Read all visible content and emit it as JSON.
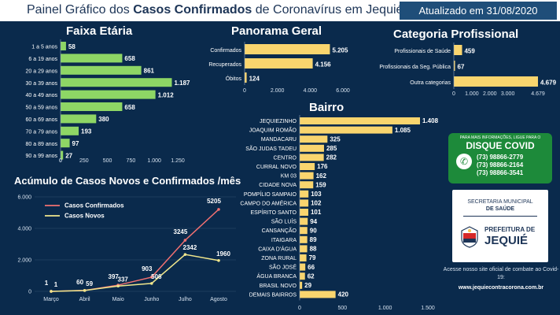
{
  "header": {
    "title_pre": "Painel Gráfico dos ",
    "title_bold": "Casos Confirmados",
    "title_post": " de Coronavírus em Jequié",
    "updated": "Atualizado em 31/08/2020"
  },
  "colors": {
    "background": "#0a2a4c",
    "green_bar": "#8ed665",
    "yellow_bar": "#f9d56e",
    "line_red": "#f07071",
    "line_yellow": "#f0e68c",
    "covid_box": "#1d8a3a"
  },
  "chart_data": [
    {
      "id": "faixa",
      "type": "bar",
      "orientation": "horizontal",
      "title": "Faixa Etária",
      "categories": [
        "1 a 5 anos",
        "6 a 19 anos",
        "20 a 29 anos",
        "30 a 39 anos",
        "40 a 49 anos",
        "50 a 59 anos",
        "60 a 69 anos",
        "70 a 79 anos",
        "80 a 89 anos",
        "90 a 99 anos"
      ],
      "values": [
        58,
        658,
        861,
        1187,
        1012,
        658,
        380,
        193,
        97,
        27
      ],
      "xlim": [
        0,
        1250
      ],
      "xticks": [
        "0",
        "250",
        "500",
        "750",
        "1.000",
        "1.250"
      ]
    },
    {
      "id": "panorama",
      "type": "bar",
      "orientation": "horizontal",
      "title": "Panorama Geral",
      "categories": [
        "Confirmados",
        "Recuperados",
        "Óbitos"
      ],
      "values": [
        5205,
        4156,
        124
      ],
      "xlim": [
        0,
        6000
      ],
      "xticks": [
        "0",
        "2.000",
        "4.000",
        "6.000"
      ]
    },
    {
      "id": "categoria",
      "type": "bar",
      "orientation": "horizontal",
      "title": "Categoria Profissional",
      "categories": [
        "Profissionais de Saúde",
        "Profissionais da Seg. Pública",
        "Outra categorias"
      ],
      "values": [
        459,
        67,
        4679
      ],
      "xlim": [
        0,
        4679
      ],
      "xticks": [
        "0",
        "1.000",
        "2.000",
        "3.000",
        "4.679"
      ]
    },
    {
      "id": "bairro",
      "type": "bar",
      "orientation": "horizontal",
      "title": "Bairro",
      "categories": [
        "JEQUIEZINHO",
        "JOAQUIM ROMÃO",
        "MANDACARU",
        "SÃO JUDAS TADEU",
        "CENTRO",
        "CURRAL NOVO",
        "KM 03",
        "CIDADE NOVA",
        "POMPÍLIO SAMPAIO",
        "CAMPO DO AMÉRICA",
        "ESPÍRITO SANTO",
        "SÃO LUÍS",
        "CANSANÇÃO",
        "ITAIGARA",
        "CAIXA D'ÁGUA",
        "ZONA RURAL",
        "SÃO JOSÉ",
        "ÁGUA BRANCA",
        "BRASIL NOVO",
        "DEMAIS BAIRROS"
      ],
      "values": [
        1408,
        1085,
        325,
        285,
        282,
        176,
        162,
        159,
        103,
        102,
        101,
        94,
        90,
        89,
        88,
        79,
        66,
        62,
        29,
        420
      ],
      "xlim": [
        0,
        1500
      ],
      "xticks": [
        "0",
        "500",
        "1.000",
        "1.500"
      ]
    },
    {
      "id": "acumulo",
      "type": "line",
      "title": "Acúmulo de Casos Novos e Confirmados /mês",
      "categories": [
        "Março",
        "Abril",
        "Maio",
        "Junho",
        "Julho",
        "Agosto"
      ],
      "series": [
        {
          "name": "Casos Confirmados",
          "values": [
            1,
            60,
            397,
            903,
            3245,
            5205
          ],
          "labels": [
            "1",
            "60",
            "397",
            "903",
            "3245",
            "5205"
          ]
        },
        {
          "name": "Casos Novos",
          "values": [
            1,
            59,
            337,
            506,
            2342,
            1960
          ],
          "labels": [
            "1",
            "59",
            "337",
            "506",
            "2342",
            "1960"
          ]
        }
      ],
      "ylim": [
        0,
        6000
      ],
      "yticks": [
        "0",
        "2.000",
        "4.000",
        "6.000"
      ],
      "legend_position": "top-left"
    }
  ],
  "disque": {
    "small": "PARA MAIS INFORMAÇÕES, LIGUE PARA O",
    "big": "DISQUE COVID",
    "phones": [
      "(73) 98866-2779",
      "(73) 98866-2164",
      "(73) 98866-3541"
    ],
    "icon": "whatsapp-icon"
  },
  "secretaria": {
    "line1": "SECRETARIA MUNICIPAL",
    "line2": "DE SAÚDE",
    "prefeitura_small": "PREFEITURA DE",
    "prefeitura_big": "JEQUIÉ",
    "seal_icon": "city-seal-icon"
  },
  "footer": {
    "text": "Acesse nosso site oficial de combate ao Covid-19:",
    "url": "www.jequiecontracorona.com.br"
  }
}
